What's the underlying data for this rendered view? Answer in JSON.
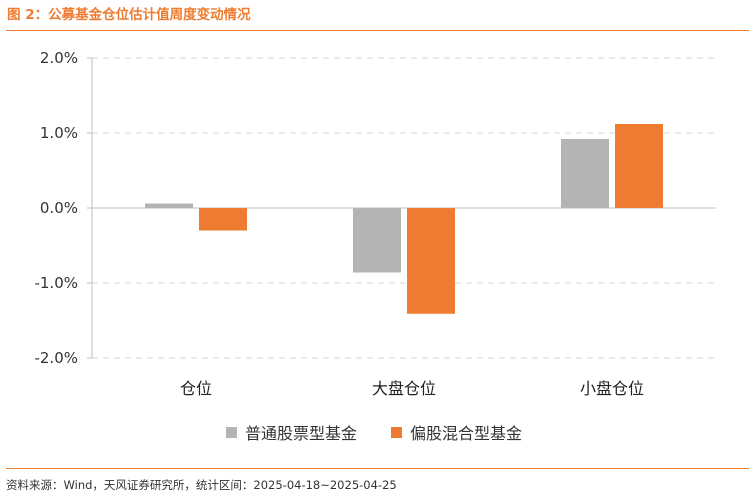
{
  "header": {
    "title": "图 2：公募基金仓位估计值周度变动情况"
  },
  "footer": {
    "source": "资料来源：Wind，天风证券研究所，统计区间：2025-04-18~2025-04-25"
  },
  "chart_data": {
    "type": "bar",
    "categories": [
      "仓位",
      "大盘仓位",
      "小盘仓位"
    ],
    "series": [
      {
        "name": "普通股票型基金",
        "values": [
          0.06,
          -0.86,
          0.92
        ],
        "color": "#b4b4b4"
      },
      {
        "name": "偏股混合型基金",
        "values": [
          -0.3,
          -1.41,
          1.12
        ],
        "color": "#ee7b2f"
      }
    ],
    "ylim": [
      -2.0,
      2.0
    ],
    "yticks": [
      2.0,
      1.0,
      0.0,
      -1.0,
      -2.0
    ],
    "ytick_labels": [
      "2.0%",
      "1.0%",
      "0.0%",
      "-1.0%",
      "-2.0%"
    ],
    "unit": "%",
    "grid": true,
    "legend": "bottom"
  }
}
